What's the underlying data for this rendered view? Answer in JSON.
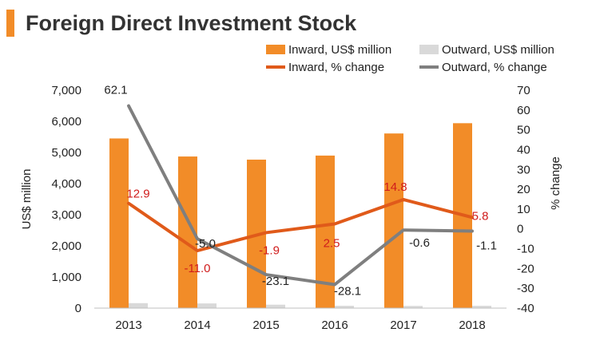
{
  "title": "Foreign Direct Investment Stock",
  "colors": {
    "accent": "#f28c28",
    "inward_bar": "#f28c28",
    "outward_bar": "#d9d9d9",
    "inward_line": "#e05a1a",
    "outward_line": "#7f7f7f",
    "inward_label": "#d01c1c",
    "outward_label": "#222222"
  },
  "chart_data": {
    "type": "bar",
    "title": "Foreign Direct Investment Stock",
    "categories": [
      "2013",
      "2014",
      "2015",
      "2016",
      "2017",
      "2018"
    ],
    "xlabel": "",
    "ylabel": "US$ million",
    "ylabel_right": "% change",
    "ylim": [
      0,
      7000
    ],
    "ylim_right": [
      -40,
      70
    ],
    "yticks": [
      "0",
      "1,000",
      "2,000",
      "3,000",
      "4,000",
      "5,000",
      "6,000",
      "7,000"
    ],
    "yticks_right": [
      "-40",
      "-30",
      "-20",
      "-10",
      "0",
      "10",
      "20",
      "30",
      "40",
      "50",
      "60",
      "70"
    ],
    "bar_series": [
      {
        "name": "Inward, US$ million",
        "values": [
          5450,
          4870,
          4770,
          4900,
          5610,
          5940
        ]
      },
      {
        "name": "Outward, US$ million",
        "values": [
          160,
          150,
          110,
          75,
          70,
          75
        ]
      }
    ],
    "line_series": [
      {
        "name": "Inward, % change",
        "axis": "right",
        "values": [
          12.9,
          -11.0,
          -1.9,
          2.5,
          14.8,
          5.8
        ],
        "labels": [
          "12.9",
          "-11.0",
          "-1.9",
          "2.5",
          "14.8",
          "5.8"
        ]
      },
      {
        "name": "Outward, % change",
        "axis": "right",
        "values": [
          62.1,
          -5.0,
          -23.1,
          -28.1,
          -0.6,
          -1.1
        ],
        "labels": [
          "62.1",
          "-5.0",
          "-23.1",
          "-28.1",
          "-0.6",
          "-1.1"
        ]
      }
    ],
    "legend_position": "top-right"
  }
}
